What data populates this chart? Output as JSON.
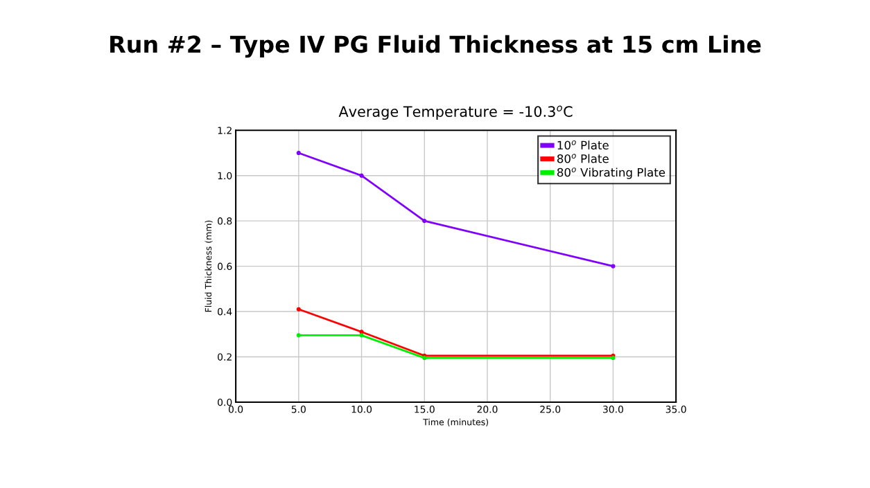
{
  "chart_data": {
    "type": "line",
    "title": "Run #2 – Type IV PG Fluid Thickness at 15 cm Line",
    "subtitle": "Average Temperature = -10.3$^{o}$C",
    "xlabel": "Time (minutes)",
    "ylabel": "Fluid Thickness (mm)",
    "x": [
      5,
      10,
      15,
      30
    ],
    "series": [
      {
        "name": "10$^{o}$ Plate",
        "color": "#7f00ff",
        "values": [
          1.1,
          1.0,
          0.8,
          0.6
        ]
      },
      {
        "name": "80$^{o}$ Plate",
        "color": "#ff0000",
        "values": [
          0.41,
          0.31,
          0.205,
          0.205
        ]
      },
      {
        "name": "80$^{o}$ Vibrating Plate",
        "color": "#00ee00",
        "values": [
          0.295,
          0.295,
          0.195,
          0.195
        ]
      }
    ],
    "xlim": [
      0,
      35
    ],
    "xticks": [
      {
        "value": 0,
        "label": "0.0"
      },
      {
        "value": 5,
        "label": "5.0"
      },
      {
        "value": 10,
        "label": "10.0"
      },
      {
        "value": 15,
        "label": "15.0"
      },
      {
        "value": 20,
        "label": "20.0"
      },
      {
        "value": 25,
        "label": "25.0"
      },
      {
        "value": 30,
        "label": "30.0"
      },
      {
        "value": 35,
        "label": "35.0"
      }
    ],
    "ylim": [
      0,
      1.2
    ],
    "yticks": [
      {
        "value": 0,
        "label": "0.0"
      },
      {
        "value": 0.2,
        "label": "0.2"
      },
      {
        "value": 0.4,
        "label": "0.4"
      },
      {
        "value": 0.6,
        "label": "0.6"
      },
      {
        "value": 0.8,
        "label": "0.8"
      },
      {
        "value": 1.0,
        "label": "1.0"
      },
      {
        "value": 1.2,
        "label": "1.2"
      }
    ],
    "grid": true,
    "legend": "top right",
    "marker": "circle",
    "line_style": "solid"
  }
}
